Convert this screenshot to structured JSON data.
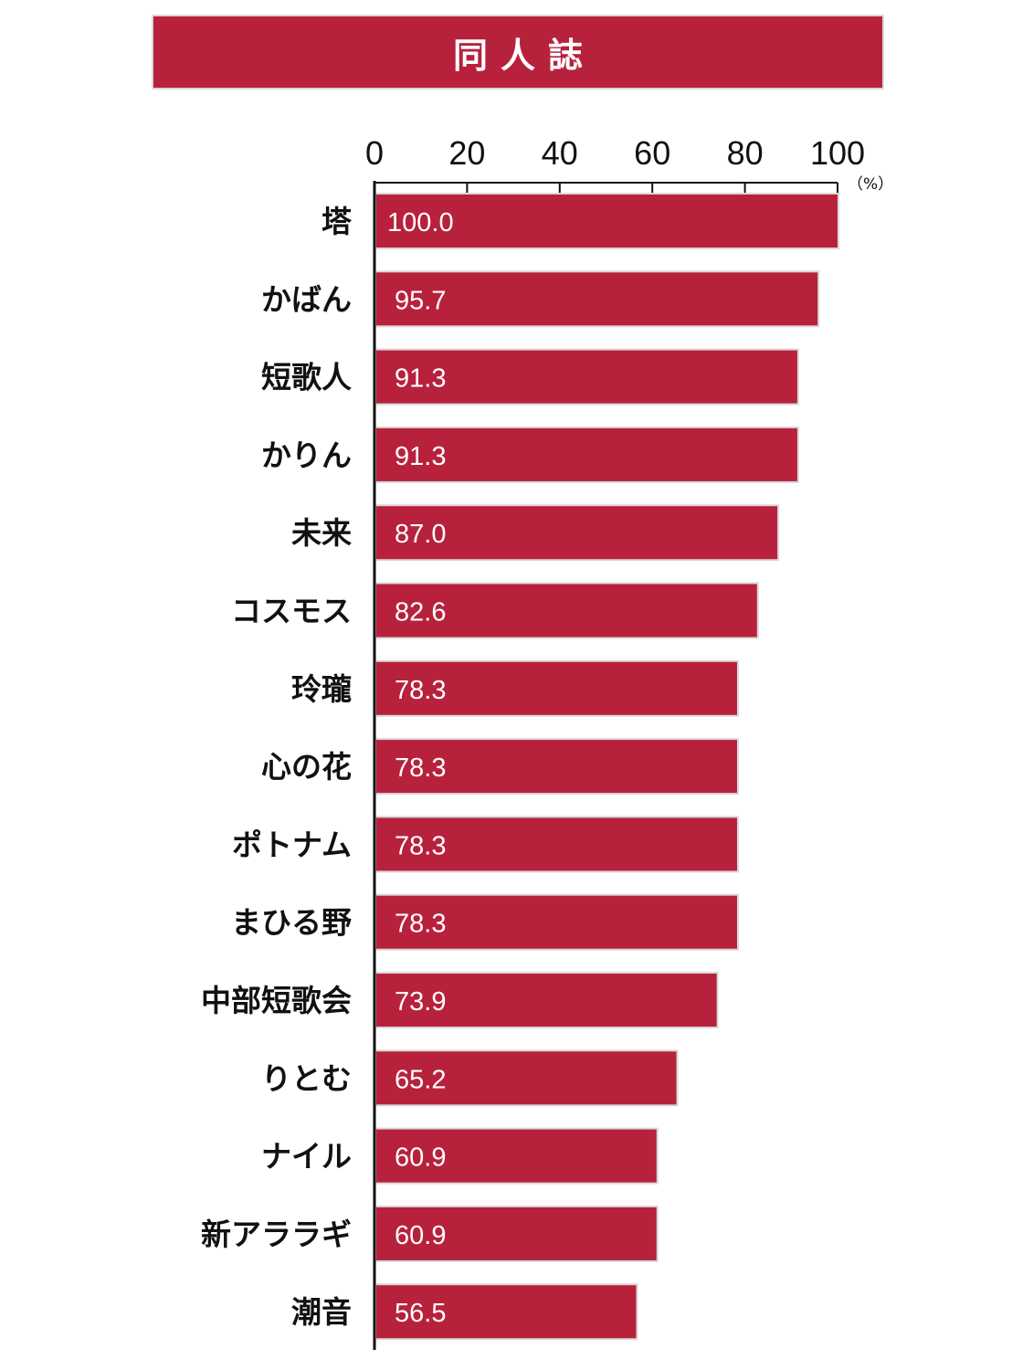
{
  "colors": {
    "accent": "#b8213c",
    "bar_border": "#d8d8d8",
    "axis": "#111111"
  },
  "chart_data": {
    "type": "bar",
    "orientation": "horizontal",
    "title": "同人誌",
    "unit_label": "（%）",
    "xlim": [
      0,
      100
    ],
    "xticks": [
      "0",
      "20",
      "40",
      "60",
      "80",
      "100"
    ],
    "categories": [
      "塔",
      "かばん",
      "短歌人",
      "かりん",
      "未来",
      "コスモス",
      "玲瓏",
      "心の花",
      "ポトナム",
      "まひる野",
      "中部短歌会",
      "りとむ",
      "ナイル",
      "新アララギ",
      "潮音"
    ],
    "values": [
      100.0,
      95.7,
      91.3,
      91.3,
      87.0,
      82.6,
      78.3,
      78.3,
      78.3,
      78.3,
      73.9,
      65.2,
      60.9,
      60.9,
      56.5
    ],
    "value_labels": [
      "100.0",
      "95.7",
      "91.3",
      "91.3",
      "87.0",
      "82.6",
      "78.3",
      "78.3",
      "78.3",
      "78.3",
      "73.9",
      "65.2",
      "60.9",
      "60.9",
      "56.5"
    ],
    "grid": false,
    "legend": "none"
  }
}
